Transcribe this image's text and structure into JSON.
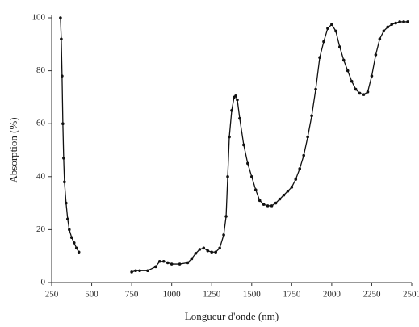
{
  "chart_data": {
    "type": "line",
    "x_label": "Longueur d'onde (nm)",
    "y_label": "Absorption (%)",
    "color": "#111111",
    "x": [
      305,
      310,
      315,
      320,
      325,
      330,
      340,
      350,
      360,
      375,
      390,
      405,
      420,
      null,
      750,
      775,
      800,
      850,
      900,
      925,
      950,
      975,
      1000,
      1050,
      1100,
      1125,
      1150,
      1175,
      1200,
      1225,
      1250,
      1275,
      1300,
      1325,
      1340,
      1350,
      1360,
      1375,
      1390,
      1400,
      1410,
      1425,
      1450,
      1475,
      1500,
      1525,
      1550,
      1575,
      1600,
      1625,
      1650,
      1675,
      1700,
      1725,
      1750,
      1775,
      1800,
      1825,
      1850,
      1875,
      1900,
      1925,
      1950,
      1975,
      2000,
      2025,
      2050,
      2075,
      2100,
      2125,
      2150,
      2175,
      2200,
      2225,
      2250,
      2275,
      2300,
      2325,
      2350,
      2375,
      2400,
      2425,
      2450,
      2475
    ],
    "values": [
      100,
      92,
      78,
      60,
      47,
      38,
      30,
      24,
      20,
      17,
      15,
      13,
      11.5,
      null,
      4,
      4.5,
      4.5,
      4.5,
      6,
      8,
      8,
      7.5,
      7,
      7,
      7.5,
      9,
      11,
      12.5,
      13,
      12,
      11.5,
      11.5,
      13,
      18,
      25,
      40,
      55,
      65,
      70,
      70.5,
      69,
      62,
      52,
      45,
      40,
      35,
      31,
      29.5,
      29,
      29,
      30,
      31.5,
      33,
      34.5,
      36,
      39,
      43,
      48,
      55,
      63,
      73,
      85,
      91,
      96,
      97.5,
      95,
      89,
      84,
      80,
      76,
      73,
      71.5,
      71,
      72,
      78,
      86,
      92,
      95,
      96.5,
      97.5,
      98,
      98.5,
      98.5,
      98.5
    ],
    "xlim": [
      250,
      2500
    ],
    "xticks": [
      250,
      500,
      750,
      1000,
      1250,
      1500,
      1750,
      2000,
      2250,
      2500
    ],
    "ylim": [
      0,
      100
    ],
    "yticks": [
      0,
      20,
      40,
      60,
      80,
      100
    ]
  }
}
